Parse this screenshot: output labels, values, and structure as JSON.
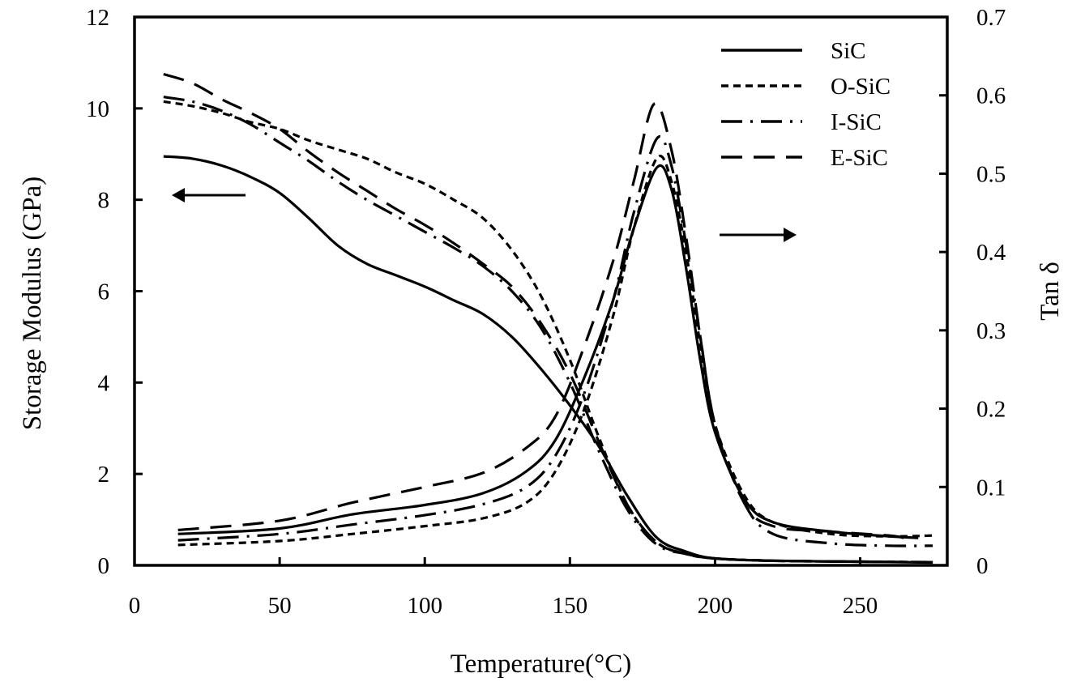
{
  "chart_data": {
    "type": "line",
    "title": "",
    "xlabel": "Temperature(°C)",
    "ylabel": "Storage Modulus (GPa)",
    "y2label": "Tan δ",
    "xlim": [
      0,
      280
    ],
    "ylim": [
      0,
      12
    ],
    "y2lim": [
      0,
      0.7
    ],
    "xticks": [
      0,
      50,
      100,
      150,
      200,
      250
    ],
    "xtick_labels": [
      "0",
      "50",
      "100",
      "150",
      "200",
      "250"
    ],
    "yticks": [
      0,
      2,
      4,
      6,
      8,
      10,
      12
    ],
    "ytick_labels": [
      "0",
      "2",
      "4",
      "6",
      "8",
      "10",
      "12"
    ],
    "y2ticks": [
      0,
      0.1,
      0.2,
      0.3,
      0.4,
      0.5,
      0.6,
      0.7
    ],
    "y2tick_labels": [
      "0",
      "0.1",
      "0.2",
      "0.3",
      "0.4",
      "0.5",
      "0.6",
      "0.7"
    ],
    "grid": false,
    "legend_position": "top-right",
    "annotations": [
      {
        "type": "arrow",
        "direction": "left",
        "meaning": "storage modulus curves use left axis"
      },
      {
        "type": "arrow",
        "direction": "right",
        "meaning": "tan delta curves use right axis"
      }
    ],
    "series": [
      {
        "name": "SiC",
        "style": "solid",
        "storage_modulus": {
          "x": [
            10,
            20,
            30,
            40,
            50,
            60,
            70,
            80,
            90,
            100,
            110,
            120,
            130,
            140,
            150,
            160,
            170,
            180,
            190,
            200,
            220,
            250,
            275
          ],
          "y": [
            8.95,
            8.9,
            8.75,
            8.5,
            8.15,
            7.6,
            7.0,
            6.6,
            6.35,
            6.1,
            5.8,
            5.5,
            5.0,
            4.3,
            3.5,
            2.6,
            1.5,
            0.6,
            0.3,
            0.15,
            0.1,
            0.08,
            0.06
          ]
        },
        "tan_delta": {
          "x": [
            15,
            50,
            75,
            100,
            120,
            135,
            145,
            155,
            165,
            172,
            180,
            185,
            190,
            195,
            200,
            210,
            220,
            240,
            260,
            270
          ],
          "y": [
            0.04,
            0.047,
            0.065,
            0.077,
            0.092,
            0.12,
            0.16,
            0.24,
            0.34,
            0.43,
            0.508,
            0.48,
            0.38,
            0.26,
            0.17,
            0.085,
            0.055,
            0.043,
            0.037,
            0.035
          ]
        }
      },
      {
        "name": "O-SiC",
        "style": "short-dash",
        "storage_modulus": {
          "x": [
            10,
            20,
            30,
            40,
            50,
            60,
            70,
            80,
            90,
            100,
            110,
            120,
            130,
            140,
            150,
            160,
            170,
            180,
            190,
            200,
            220,
            250,
            275
          ],
          "y": [
            10.15,
            10.05,
            9.9,
            9.7,
            9.55,
            9.3,
            9.1,
            8.9,
            8.6,
            8.35,
            8.0,
            7.6,
            6.9,
            5.9,
            4.5,
            2.8,
            1.3,
            0.5,
            0.25,
            0.15,
            0.1,
            0.08,
            0.07
          ]
        },
        "tan_delta": {
          "x": [
            15,
            50,
            75,
            100,
            120,
            135,
            145,
            155,
            165,
            172,
            180,
            185,
            190,
            195,
            200,
            210,
            220,
            240,
            260,
            275
          ],
          "y": [
            0.026,
            0.031,
            0.04,
            0.05,
            0.06,
            0.08,
            0.12,
            0.2,
            0.32,
            0.43,
            0.52,
            0.49,
            0.4,
            0.28,
            0.18,
            0.09,
            0.055,
            0.04,
            0.037,
            0.038
          ]
        }
      },
      {
        "name": "I-SiC",
        "style": "dash-dot",
        "storage_modulus": {
          "x": [
            10,
            20,
            30,
            40,
            50,
            60,
            70,
            80,
            90,
            100,
            110,
            120,
            130,
            140,
            150,
            160,
            170,
            180,
            190,
            200,
            220,
            250,
            275
          ],
          "y": [
            10.25,
            10.15,
            9.95,
            9.65,
            9.25,
            8.85,
            8.4,
            8.0,
            7.65,
            7.3,
            6.95,
            6.55,
            6.0,
            5.2,
            4.0,
            2.5,
            1.2,
            0.45,
            0.25,
            0.15,
            0.1,
            0.08,
            0.07
          ]
        },
        "tan_delta": {
          "x": [
            15,
            50,
            75,
            100,
            120,
            135,
            145,
            155,
            165,
            172,
            180,
            185,
            190,
            195,
            200,
            210,
            220,
            240,
            260,
            275
          ],
          "y": [
            0.032,
            0.04,
            0.052,
            0.064,
            0.078,
            0.1,
            0.14,
            0.22,
            0.34,
            0.45,
            0.545,
            0.51,
            0.41,
            0.29,
            0.18,
            0.08,
            0.04,
            0.028,
            0.025,
            0.025
          ]
        }
      },
      {
        "name": "E-SiC",
        "style": "long-dash",
        "storage_modulus": {
          "x": [
            10,
            20,
            30,
            40,
            50,
            60,
            70,
            80,
            90,
            100,
            110,
            120,
            130,
            140,
            150,
            160,
            170,
            180,
            190,
            200,
            220,
            250,
            275
          ],
          "y": [
            10.75,
            10.55,
            10.2,
            9.9,
            9.55,
            9.05,
            8.6,
            8.2,
            7.8,
            7.45,
            7.05,
            6.6,
            6.1,
            5.3,
            4.2,
            2.7,
            1.3,
            0.5,
            0.25,
            0.15,
            0.1,
            0.08,
            0.07
          ]
        },
        "tan_delta": {
          "x": [
            15,
            50,
            75,
            100,
            120,
            135,
            145,
            155,
            165,
            172,
            179,
            185,
            190,
            195,
            200,
            210,
            220,
            240,
            260,
            265
          ],
          "y": [
            0.045,
            0.057,
            0.08,
            0.1,
            0.118,
            0.15,
            0.19,
            0.28,
            0.39,
            0.49,
            0.589,
            0.53,
            0.42,
            0.29,
            0.18,
            0.08,
            0.05,
            0.043,
            0.038,
            0.035
          ]
        }
      }
    ]
  }
}
